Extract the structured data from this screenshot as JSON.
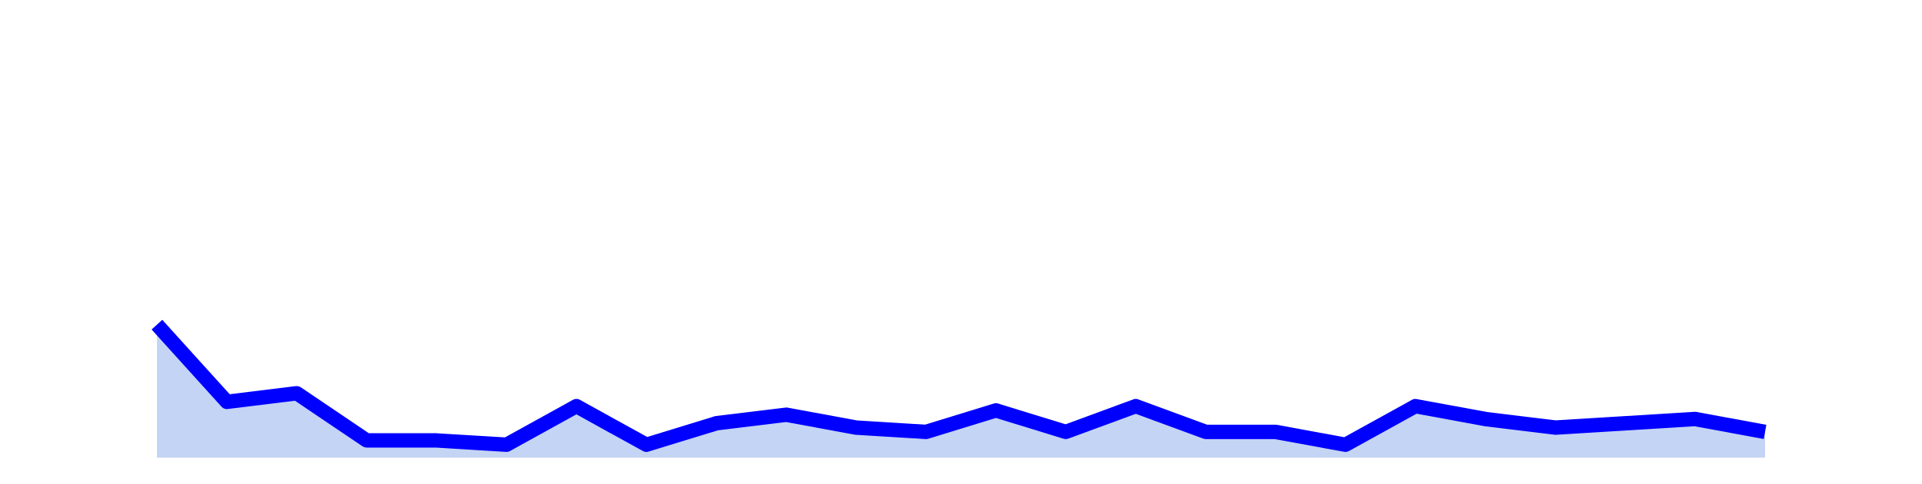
{
  "chart_data": {
    "type": "area",
    "title": "",
    "xlabel": "",
    "ylabel": "",
    "x": [
      0,
      1,
      2,
      3,
      4,
      5,
      6,
      7,
      8,
      9,
      10,
      11,
      12,
      13,
      14,
      15,
      16,
      17,
      18,
      19,
      20,
      21,
      22,
      23
    ],
    "values": [
      31,
      13,
      15,
      4,
      4,
      3,
      12,
      3,
      8,
      10,
      7,
      6,
      11,
      6,
      12,
      6,
      6,
      3,
      12,
      9,
      7,
      8,
      9,
      6
    ],
    "ylim": [
      0,
      100
    ],
    "grid": false,
    "legend": "none",
    "line_color": "#0000ff",
    "fill_color": "#c4d4f4"
  }
}
